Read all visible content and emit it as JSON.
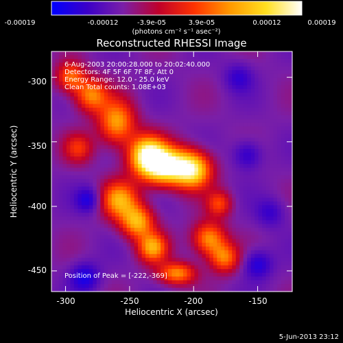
{
  "colorbar": {
    "tick_labels": [
      "-0.00019",
      "-0.00012",
      "-3.9e-05",
      "3.9e-05",
      "0.00012",
      "0.00019"
    ],
    "unit_label": "(photons cm⁻² s⁻¹ asec⁻²)",
    "colors": [
      "#0000ff",
      "#3b00c8",
      "#7a1fa8",
      "#c0002a",
      "#ff3300",
      "#ff9a00",
      "#ffe020",
      "#ffffff"
    ]
  },
  "annotations": {
    "time_range": "6-Aug-2003 20:00:28.000 to 20:02:40.000",
    "detectors": "Detectors: 4F 5F 6F 7F 8F, Att 0",
    "energy": "Energy Range: 12.0 - 25.0 keV",
    "clean": "Clean     Total counts: 1.08E+03",
    "peak": "Position of Peak = [-222,-369]"
  },
  "footer": {
    "timestamp": "5-Jun-2013 23:12"
  },
  "chart_data": {
    "type": "heatmap",
    "title": "Reconstructed RHESSI Image",
    "xlabel": "Heliocentric X (arcsec)",
    "ylabel": "Heliocentric Y (arcsec)",
    "xlim": [
      -311,
      -123
    ],
    "ylim": [
      -466,
      -280
    ],
    "x_ticks": [
      -300,
      -250,
      -200,
      -150
    ],
    "y_ticks": [
      -300,
      -350,
      -400,
      -450
    ],
    "x_tick_labels": [
      "-300",
      "-250",
      "-200",
      "-150"
    ],
    "y_tick_labels": [
      "-300",
      "-350",
      "-400",
      "-450"
    ],
    "peak_position": [
      -222,
      -369
    ],
    "value_range": [
      -0.00019,
      0.00019
    ],
    "sources": [
      {
        "x": -222,
        "y": -369,
        "sx": 14,
        "sy": 10,
        "amp": 1.0
      },
      {
        "x": -236,
        "y": -359,
        "sx": 10,
        "sy": 10,
        "amp": 0.78
      },
      {
        "x": -200,
        "y": -372,
        "sx": 10,
        "sy": 10,
        "amp": 0.72
      },
      {
        "x": -260,
        "y": -335,
        "sx": 10,
        "sy": 12,
        "amp": 0.62
      },
      {
        "x": -280,
        "y": -314,
        "sx": 9,
        "sy": 9,
        "amp": 0.55
      },
      {
        "x": -296,
        "y": -300,
        "sx": 8,
        "sy": 8,
        "amp": 0.5
      },
      {
        "x": -258,
        "y": -395,
        "sx": 10,
        "sy": 10,
        "amp": 0.62
      },
      {
        "x": -244,
        "y": -412,
        "sx": 9,
        "sy": 9,
        "amp": 0.66
      },
      {
        "x": -232,
        "y": -432,
        "sx": 8,
        "sy": 8,
        "amp": 0.62
      },
      {
        "x": -188,
        "y": -425,
        "sx": 9,
        "sy": 9,
        "amp": 0.6
      },
      {
        "x": -176,
        "y": -440,
        "sx": 8,
        "sy": 8,
        "amp": 0.52
      },
      {
        "x": -213,
        "y": -452,
        "sx": 10,
        "sy": 6,
        "amp": 0.58
      },
      {
        "x": -180,
        "y": -398,
        "sx": 7,
        "sy": 7,
        "amp": 0.4
      },
      {
        "x": -290,
        "y": -355,
        "sx": 8,
        "sy": 8,
        "amp": 0.35
      },
      {
        "x": -158,
        "y": -360,
        "sx": 8,
        "sy": 8,
        "amp": -0.25
      },
      {
        "x": -150,
        "y": -445,
        "sx": 8,
        "sy": 8,
        "amp": -0.28
      },
      {
        "x": -285,
        "y": -455,
        "sx": 8,
        "sy": 8,
        "amp": -0.3
      },
      {
        "x": -282,
        "y": -395,
        "sx": 7,
        "sy": 7,
        "amp": -0.28
      },
      {
        "x": -165,
        "y": -300,
        "sx": 8,
        "sy": 8,
        "amp": -0.2
      },
      {
        "x": -140,
        "y": -405,
        "sx": 8,
        "sy": 8,
        "amp": -0.2
      }
    ]
  }
}
